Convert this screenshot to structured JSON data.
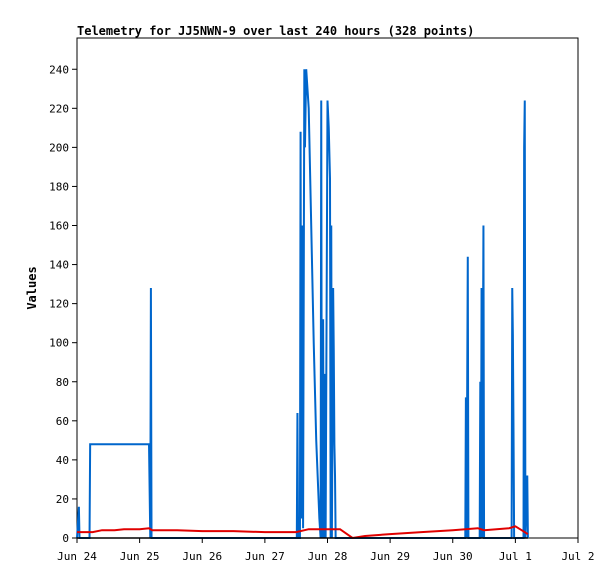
{
  "chart_data": {
    "type": "line",
    "title": "Telemetry for JJ5NWN-9 over last 240 hours (328 points)",
    "xlabel": "",
    "ylabel": "Values",
    "x_tick_labels": [
      "Jun 24",
      "Jun 25",
      "Jun 26",
      "Jun 27",
      "Jun 28",
      "Jun 29",
      "Jun 30",
      "Jul 1",
      "Jul 2"
    ],
    "xlim": [
      "Jun 24",
      "Jul 2"
    ],
    "y_ticks": [
      0,
      20,
      40,
      60,
      80,
      100,
      120,
      140,
      160,
      180,
      200,
      220,
      240
    ],
    "ylim": [
      0,
      256
    ],
    "grid": false,
    "legend": "none",
    "series": [
      {
        "color": "#0066cc",
        "points": [
          [
            0.0,
            0
          ],
          [
            0.03,
            16
          ],
          [
            0.04,
            0
          ],
          [
            0.2,
            0
          ],
          [
            0.21,
            48
          ],
          [
            1.15,
            48
          ],
          [
            1.17,
            0
          ],
          [
            1.18,
            128
          ],
          [
            1.19,
            0
          ],
          [
            3.51,
            0
          ],
          [
            3.52,
            64
          ],
          [
            3.53,
            0
          ],
          [
            3.56,
            0
          ],
          [
            3.57,
            208
          ],
          [
            3.58,
            10
          ],
          [
            3.6,
            160
          ],
          [
            3.61,
            5
          ],
          [
            3.63,
            240
          ],
          [
            3.64,
            200
          ],
          [
            3.66,
            240
          ],
          [
            3.7,
            220
          ],
          [
            3.74,
            160
          ],
          [
            3.78,
            100
          ],
          [
            3.82,
            50
          ],
          [
            3.87,
            10
          ],
          [
            3.89,
            0
          ],
          [
            3.9,
            224
          ],
          [
            3.91,
            0
          ],
          [
            3.93,
            112
          ],
          [
            3.94,
            0
          ],
          [
            3.96,
            84
          ],
          [
            3.97,
            0
          ],
          [
            4.0,
            224
          ],
          [
            4.02,
            210
          ],
          [
            4.04,
            184
          ],
          [
            4.05,
            0
          ],
          [
            4.06,
            160
          ],
          [
            4.07,
            0
          ],
          [
            4.09,
            128
          ],
          [
            4.1,
            96
          ],
          [
            4.11,
            48
          ],
          [
            4.12,
            32
          ],
          [
            4.13,
            0
          ],
          [
            6.2,
            0
          ],
          [
            6.21,
            72
          ],
          [
            6.22,
            0
          ],
          [
            6.24,
            144
          ],
          [
            6.25,
            0
          ],
          [
            6.43,
            0
          ],
          [
            6.44,
            80
          ],
          [
            6.45,
            0
          ],
          [
            6.46,
            128
          ],
          [
            6.47,
            0
          ],
          [
            6.49,
            160
          ],
          [
            6.5,
            0
          ],
          [
            6.94,
            0
          ],
          [
            6.95,
            128
          ],
          [
            6.96,
            104
          ],
          [
            6.97,
            56
          ],
          [
            6.98,
            0
          ],
          [
            7.13,
            0
          ],
          [
            7.14,
            200
          ],
          [
            7.15,
            224
          ],
          [
            7.16,
            0
          ],
          [
            7.19,
            32
          ],
          [
            7.2,
            0
          ]
        ]
      },
      {
        "color": "#e00000",
        "points": [
          [
            0.0,
            3
          ],
          [
            0.25,
            3
          ],
          [
            0.4,
            4
          ],
          [
            0.6,
            4
          ],
          [
            0.75,
            4.5
          ],
          [
            1.0,
            4.5
          ],
          [
            1.15,
            5
          ],
          [
            1.2,
            4
          ],
          [
            1.6,
            4
          ],
          [
            2.0,
            3.5
          ],
          [
            2.5,
            3.5
          ],
          [
            3.0,
            3
          ],
          [
            3.5,
            3
          ],
          [
            3.7,
            4.5
          ],
          [
            4.2,
            4.5
          ],
          [
            4.4,
            0
          ],
          [
            4.6,
            1
          ],
          [
            5.0,
            2
          ],
          [
            5.5,
            3
          ],
          [
            6.0,
            4
          ],
          [
            6.4,
            5
          ],
          [
            6.5,
            4
          ],
          [
            6.9,
            5
          ],
          [
            7.0,
            6
          ],
          [
            7.1,
            4
          ],
          [
            7.2,
            2
          ]
        ]
      },
      {
        "color": "#000000",
        "points": [
          [
            0.0,
            0
          ],
          [
            7.2,
            0
          ]
        ]
      }
    ]
  }
}
